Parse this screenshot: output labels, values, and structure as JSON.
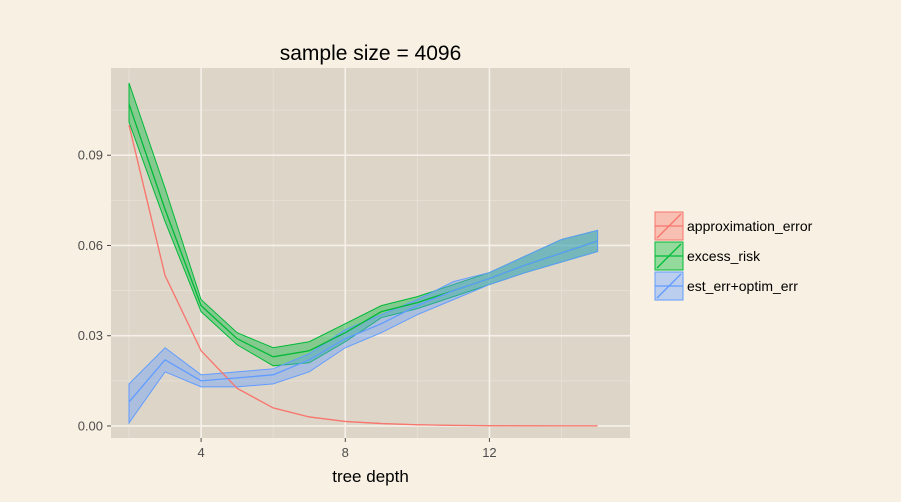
{
  "chart_data": {
    "type": "line",
    "title": "sample size = 4096",
    "xlabel": "tree depth",
    "ylabel": "",
    "xlim": [
      1.5,
      15.9
    ],
    "ylim": [
      -0.004,
      0.119
    ],
    "xticks": [
      4,
      8,
      12
    ],
    "xtick_labels": [
      "4",
      "8",
      "12"
    ],
    "yticks": [
      0,
      0.03,
      0.06,
      0.09
    ],
    "ytick_labels": [
      "0.00",
      "0.03",
      "0.06",
      "0.09"
    ],
    "grid": true,
    "legend_position": "right",
    "x": [
      2,
      3,
      4,
      5,
      6,
      7,
      8,
      9,
      10,
      11,
      12,
      13,
      14,
      15
    ],
    "series": [
      {
        "name": "approximation_error",
        "color": "#F8766D",
        "values": [
          0.1,
          0.05,
          0.025,
          0.0125,
          0.006,
          0.003,
          0.0015,
          0.0008,
          0.0004,
          0.0002,
          0.0001,
          5e-05,
          3e-05,
          2e-05
        ],
        "lower": [
          0.1,
          0.05,
          0.025,
          0.0125,
          0.006,
          0.003,
          0.0015,
          0.0008,
          0.0004,
          0.0002,
          0.0001,
          5e-05,
          3e-05,
          2e-05
        ],
        "upper": [
          0.1,
          0.05,
          0.025,
          0.0125,
          0.006,
          0.003,
          0.0015,
          0.0008,
          0.0004,
          0.0002,
          0.0001,
          5e-05,
          3e-05,
          2e-05
        ]
      },
      {
        "name": "excess_risk",
        "color": "#00BA38",
        "values": [
          0.107,
          0.072,
          0.04,
          0.029,
          0.023,
          0.025,
          0.031,
          0.038,
          0.041,
          0.045,
          0.049,
          0.0535,
          0.0575,
          0.0615
        ],
        "lower": [
          0.101,
          0.068,
          0.038,
          0.027,
          0.02,
          0.021,
          0.028,
          0.036,
          0.039,
          0.043,
          0.047,
          0.051,
          0.0545,
          0.058
        ],
        "upper": [
          0.114,
          0.079,
          0.042,
          0.031,
          0.026,
          0.028,
          0.034,
          0.04,
          0.043,
          0.047,
          0.051,
          0.0565,
          0.062,
          0.065
        ]
      },
      {
        "name": "est_err+optim_err",
        "color": "#619CFF",
        "values": [
          0.008,
          0.022,
          0.015,
          0.016,
          0.017,
          0.022,
          0.029,
          0.034,
          0.04,
          0.045,
          0.049,
          0.0535,
          0.0575,
          0.0615
        ],
        "lower": [
          0.001,
          0.018,
          0.013,
          0.013,
          0.014,
          0.018,
          0.026,
          0.031,
          0.037,
          0.042,
          0.047,
          0.051,
          0.0545,
          0.058
        ],
        "upper": [
          0.014,
          0.026,
          0.017,
          0.018,
          0.019,
          0.024,
          0.032,
          0.037,
          0.042,
          0.048,
          0.051,
          0.0565,
          0.062,
          0.065
        ]
      }
    ]
  }
}
